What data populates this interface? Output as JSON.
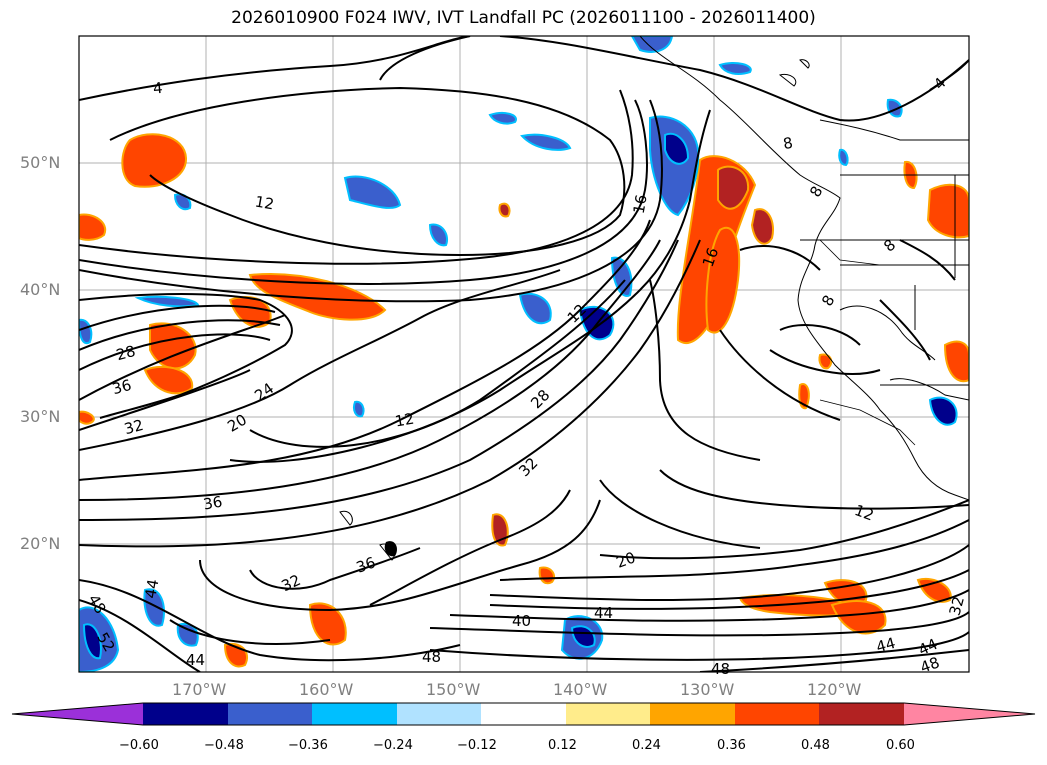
{
  "title": "2026010900 F024 IWV, IVT Landfall PC (2026011100 - 2026011400)",
  "map": {
    "lat_labels": [
      "50°N",
      "40°N",
      "30°N",
      "20°N"
    ],
    "lon_labels": [
      "170°W",
      "160°W",
      "150°W",
      "140°W",
      "130°W",
      "120°W"
    ],
    "contour_labels": [
      "4",
      "4",
      "8",
      "8",
      "8",
      "8",
      "12",
      "12",
      "12",
      "12",
      "16",
      "16",
      "20",
      "20",
      "24",
      "28",
      "28",
      "32",
      "32",
      "32",
      "32",
      "36",
      "36",
      "36",
      "40",
      "44",
      "44",
      "44",
      "44",
      "48",
      "48",
      "48",
      "48",
      "52",
      "44"
    ],
    "positive_color": "#ff4500",
    "negative_color": "#1e90ff"
  },
  "colorbar": {
    "colors": [
      "#9b30d9",
      "#00008b",
      "#3a5fcd",
      "#00bfff",
      "#b0e2ff",
      "#ffffff",
      "#ffec8b",
      "#ffa500",
      "#ff4500",
      "#b22222",
      "#ff85a2"
    ],
    "tick_labels": [
      "−0.60",
      "−0.48",
      "−0.36",
      "−0.24",
      "−0.12",
      "0.12",
      "0.24",
      "0.36",
      "0.48",
      "0.60"
    ]
  }
}
